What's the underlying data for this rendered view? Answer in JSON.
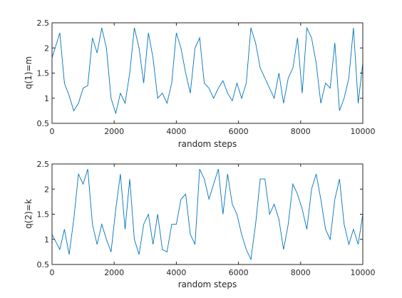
{
  "chart_data": [
    {
      "type": "line",
      "ylabel": "q(1)=m",
      "xlabel": "random steps",
      "xlim": [
        0,
        10000
      ],
      "ylim": [
        0.5,
        2.5
      ],
      "xticks": [
        0,
        2000,
        4000,
        6000,
        8000,
        10000
      ],
      "xtick_labels": [
        "0",
        "2000",
        "4000",
        "6000",
        "8000",
        "10000"
      ],
      "yticks": [
        0.5,
        1,
        1.5,
        2,
        2.5
      ],
      "ytick_labels": [
        "0.5",
        "1",
        "1.5",
        "2",
        "2.5"
      ],
      "grid": false,
      "line_color": "#0072BD",
      "series": [
        {
          "x": [
            0,
            250,
            400,
            550,
            700,
            850,
            1000,
            1150,
            1300,
            1450,
            1600,
            1750,
            1900,
            2050,
            2200,
            2350,
            2500,
            2650,
            2800,
            2950,
            3100,
            3250,
            3400,
            3550,
            3700,
            3850,
            4000,
            4150,
            4300,
            4450,
            4600,
            4750,
            4900,
            5050,
            5200,
            5350,
            5500,
            5650,
            5800,
            5950,
            6100,
            6250,
            6400,
            6550,
            6700,
            6850,
            7000,
            7150,
            7300,
            7450,
            7600,
            7750,
            7900,
            8050,
            8200,
            8350,
            8500,
            8650,
            8800,
            8950,
            9100,
            9250,
            9400,
            9550,
            9700,
            9850,
            10000
          ],
          "y": [
            1.8,
            2.3,
            1.3,
            1.05,
            0.75,
            0.9,
            1.2,
            1.25,
            2.2,
            1.9,
            2.4,
            2.0,
            1.0,
            0.7,
            1.1,
            0.9,
            1.5,
            2.4,
            2.0,
            1.3,
            2.3,
            1.8,
            1.0,
            1.1,
            0.9,
            1.3,
            2.3,
            2.0,
            1.5,
            1.1,
            2.0,
            2.2,
            1.3,
            1.2,
            1.0,
            1.2,
            1.35,
            1.1,
            0.95,
            1.3,
            1.0,
            1.3,
            2.4,
            2.1,
            1.6,
            1.4,
            1.2,
            1.0,
            1.5,
            0.9,
            1.4,
            1.6,
            2.2,
            1.1,
            2.4,
            2.2,
            1.7,
            0.9,
            1.3,
            1.2,
            2.1,
            0.75,
            1.0,
            1.4,
            2.4,
            0.9,
            1.7
          ]
        }
      ]
    },
    {
      "type": "line",
      "ylabel": "q(2)=k",
      "xlabel": "random steps",
      "xlim": [
        0,
        10000
      ],
      "ylim": [
        0.5,
        2.5
      ],
      "xticks": [
        0,
        2000,
        4000,
        6000,
        8000,
        10000
      ],
      "xtick_labels": [
        "0",
        "2000",
        "4000",
        "6000",
        "8000",
        "10000"
      ],
      "yticks": [
        0.5,
        1,
        1.5,
        2,
        2.5
      ],
      "ytick_labels": [
        "0.5",
        "1",
        "1.5",
        "2",
        "2.5"
      ],
      "grid": false,
      "line_color": "#0072BD",
      "series": [
        {
          "x": [
            0,
            250,
            400,
            550,
            700,
            850,
            1000,
            1150,
            1300,
            1450,
            1600,
            1750,
            1900,
            2050,
            2200,
            2350,
            2500,
            2650,
            2800,
            2950,
            3100,
            3250,
            3400,
            3550,
            3700,
            3850,
            4000,
            4150,
            4300,
            4450,
            4600,
            4750,
            4900,
            5050,
            5200,
            5350,
            5500,
            5650,
            5800,
            5950,
            6100,
            6250,
            6400,
            6550,
            6700,
            6850,
            7000,
            7150,
            7300,
            7450,
            7600,
            7750,
            7900,
            8050,
            8200,
            8350,
            8500,
            8650,
            8800,
            8950,
            9100,
            9250,
            9400,
            9550,
            9700,
            9850,
            10000
          ],
          "y": [
            1.1,
            0.8,
            1.2,
            0.7,
            1.4,
            2.3,
            2.1,
            2.4,
            1.3,
            0.9,
            1.3,
            1.0,
            0.75,
            1.6,
            2.3,
            1.2,
            2.2,
            1.0,
            0.7,
            1.3,
            1.5,
            0.9,
            1.5,
            0.8,
            0.75,
            1.3,
            1.3,
            1.8,
            1.9,
            1.1,
            0.9,
            2.4,
            2.2,
            1.8,
            2.1,
            2.4,
            1.5,
            2.3,
            1.7,
            1.5,
            1.1,
            0.8,
            0.6,
            1.3,
            2.2,
            2.2,
            1.5,
            1.7,
            1.4,
            0.8,
            1.3,
            2.1,
            1.9,
            1.6,
            1.2,
            2.0,
            2.3,
            1.8,
            1.2,
            1.0,
            1.8,
            2.2,
            1.3,
            0.9,
            1.2,
            0.9,
            1.5
          ]
        }
      ]
    }
  ]
}
